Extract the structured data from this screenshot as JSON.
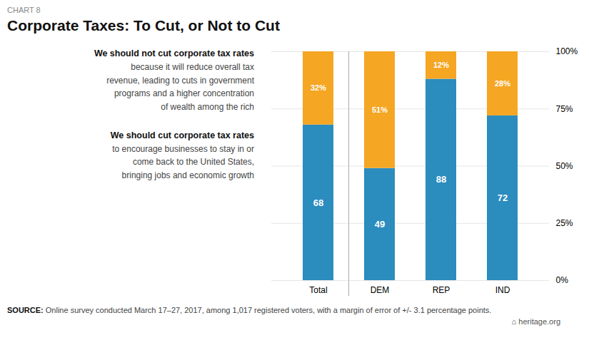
{
  "chart_data": {
    "type": "bar",
    "stacked": true,
    "label": "CHART 8",
    "title": "Corporate Taxes: To Cut, or Not to Cut",
    "categories": [
      "Total",
      "DEM",
      "REP",
      "IND"
    ],
    "series": [
      {
        "name": "We should cut corporate tax rates",
        "note": "to encourage businesses to stay in or\ncome back to the United States,\nbringing jobs and economic growth",
        "color": "#2B8CBE",
        "values": [
          68,
          49,
          88,
          72
        ]
      },
      {
        "name": "We should not cut corporate tax rates",
        "note": "because it will reduce overall tax\nrevenue, leading to cuts in government\nprograms and a higher concentration\nof wealth among the rich",
        "color": "#F5A623",
        "values": [
          32,
          51,
          12,
          28
        ],
        "value_labels": [
          "32%",
          "51%",
          "12%",
          "28%"
        ]
      }
    ],
    "data_labels": true,
    "ylim": [
      0,
      100
    ],
    "yticks": [
      {
        "value": 0,
        "label": "0%"
      },
      {
        "value": 25,
        "label": "25%"
      },
      {
        "value": 50,
        "label": "50%"
      },
      {
        "value": 75,
        "label": "75%"
      },
      {
        "value": 100,
        "label": "100%"
      }
    ],
    "grid": true,
    "source": {
      "label": "SOURCE:",
      "text": "Online survey conducted March 17–27, 2017, among 1,017 registered voters, with a margin of error of +/- 3.1 percentage points."
    },
    "credit": "⌂ heritage.org",
    "background_color": "#FFFFFF"
  }
}
